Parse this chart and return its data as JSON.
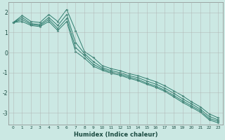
{
  "xlabel": "Humidex (Indice chaleur)",
  "background_color": "#cbe8e3",
  "grid_color": "#b0b0b0",
  "line_color": "#2e7d6e",
  "xlim": [
    -0.5,
    23.5
  ],
  "ylim": [
    -3.6,
    2.5
  ],
  "xticks": [
    0,
    1,
    2,
    3,
    4,
    5,
    6,
    7,
    8,
    9,
    10,
    11,
    12,
    13,
    14,
    15,
    16,
    17,
    18,
    19,
    20,
    21,
    22,
    23
  ],
  "yticks": [
    -3,
    -2,
    -1,
    0,
    1,
    2
  ],
  "x": [
    0,
    1,
    2,
    3,
    4,
    5,
    6,
    7,
    8,
    9,
    10,
    11,
    12,
    13,
    14,
    15,
    16,
    17,
    18,
    19,
    20,
    21,
    22,
    23
  ],
  "series": [
    [
      1.5,
      1.85,
      1.55,
      1.5,
      1.9,
      1.55,
      2.15,
      1.1,
      0.05,
      -0.25,
      -0.65,
      -0.8,
      -0.9,
      -1.05,
      -1.15,
      -1.3,
      -1.45,
      -1.65,
      -1.9,
      -2.15,
      -2.45,
      -2.7,
      -3.05,
      -3.25
    ],
    [
      1.5,
      1.75,
      1.45,
      1.4,
      1.75,
      1.35,
      1.9,
      0.5,
      -0.05,
      -0.45,
      -0.75,
      -0.9,
      -1.0,
      -1.15,
      -1.25,
      -1.42,
      -1.57,
      -1.77,
      -2.02,
      -2.3,
      -2.55,
      -2.82,
      -3.18,
      -3.35
    ],
    [
      1.5,
      1.65,
      1.4,
      1.35,
      1.65,
      1.2,
      1.7,
      0.25,
      -0.15,
      -0.58,
      -0.82,
      -0.97,
      -1.07,
      -1.22,
      -1.34,
      -1.52,
      -1.67,
      -1.87,
      -2.13,
      -2.4,
      -2.65,
      -2.9,
      -3.28,
      -3.42
    ],
    [
      1.5,
      1.55,
      1.35,
      1.3,
      1.55,
      1.1,
      1.55,
      0.05,
      -0.28,
      -0.68,
      -0.88,
      -1.03,
      -1.13,
      -1.28,
      -1.4,
      -1.58,
      -1.73,
      -1.93,
      -2.2,
      -2.48,
      -2.72,
      -2.97,
      -3.35,
      -3.5
    ]
  ]
}
